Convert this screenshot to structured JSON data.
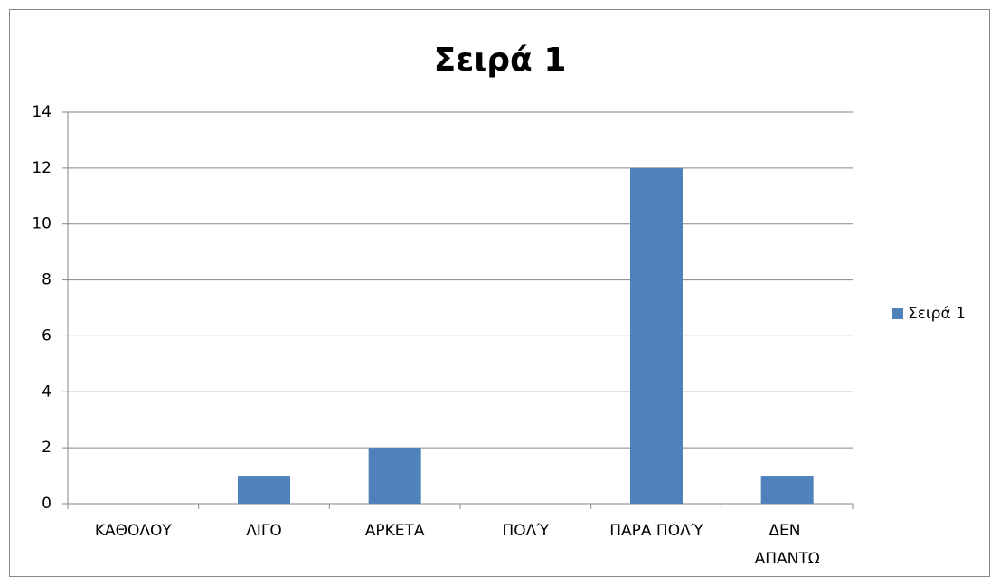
{
  "chart_data": {
    "type": "bar",
    "title": "Σειρά 1",
    "categories": [
      "ΚΑΘΟΛΟΥ",
      "ΛΙΓΟ",
      "ΑΡΚΕΤΑ",
      "ΠΟΛΎ",
      "ΠΑΡΑ ΠΟΛΎ",
      "ΔΕΝ ΑΠΑΝΤΩ"
    ],
    "series": [
      {
        "name": "Σειρά 1",
        "color": "#4f81bd",
        "values": [
          0,
          1,
          2,
          0,
          12,
          1
        ]
      }
    ],
    "ylim": [
      0,
      14
    ],
    "yticks": [
      0,
      2,
      4,
      6,
      8,
      10,
      12,
      14
    ],
    "grid": true,
    "legend": "right"
  }
}
